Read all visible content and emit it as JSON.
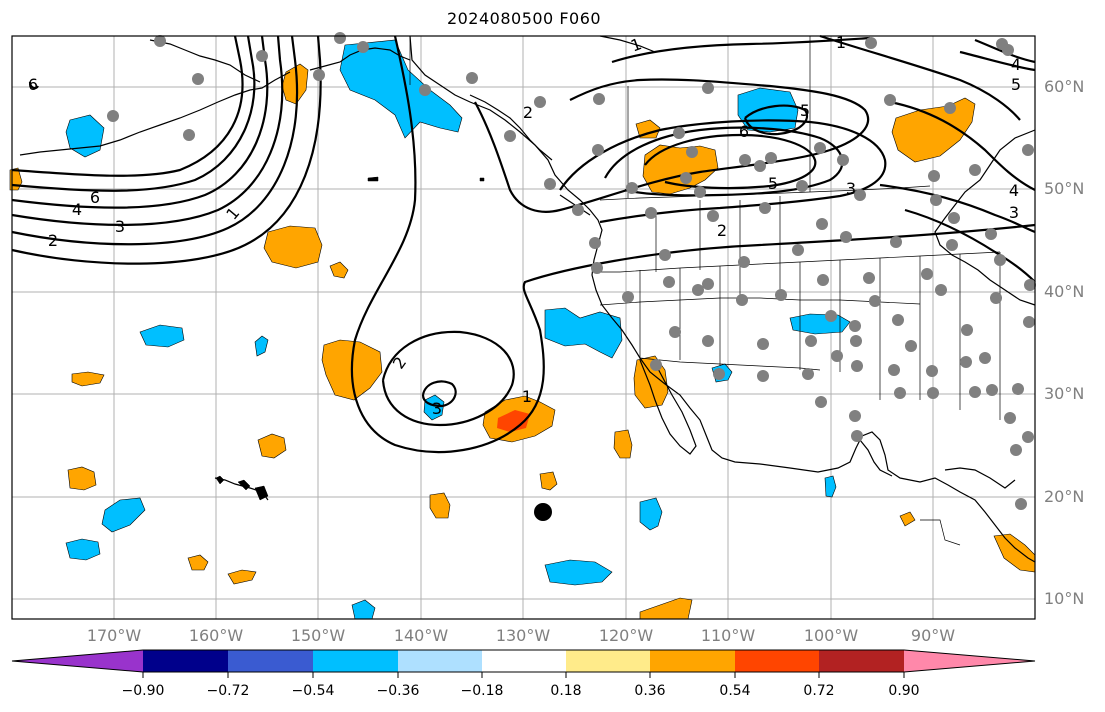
{
  "title": "2024080500 F060",
  "latitude_labels": [
    "60°N",
    "50°N",
    "40°N",
    "30°N",
    "20°N",
    "10°N"
  ],
  "longitude_labels": [
    "170°W",
    "160°W",
    "150°W",
    "140°W",
    "130°W",
    "120°W",
    "110°W",
    "100°W",
    "90°W"
  ],
  "contour_labels": [
    "6",
    "1",
    "2",
    "5",
    "5",
    "4",
    "3",
    "6",
    "5",
    "3",
    "2",
    "1",
    "6",
    "4",
    "3",
    "2",
    "1",
    "2",
    "3",
    "1",
    "4"
  ],
  "colorbar": {
    "tick_labels": [
      "−0.90",
      "−0.72",
      "−0.54",
      "−0.36",
      "−0.18",
      "0.18",
      "0.36",
      "0.54",
      "0.72",
      "0.90"
    ],
    "colors": [
      "#9933cc",
      "#00008b",
      "#3a5bd1",
      "#00bfff",
      "#aee0ff",
      "#ffffff",
      "#ffeb8a",
      "#ffa500",
      "#ff4500",
      "#b22222",
      "#ff88aa"
    ]
  },
  "fill_colors": {
    "neg_light": "#00bfff",
    "pos_light": "#ffa500",
    "pos_strong": "#ff4500"
  },
  "symbols": {
    "station_dot_color": "#808080",
    "storm_marker_color": "#000000"
  }
}
